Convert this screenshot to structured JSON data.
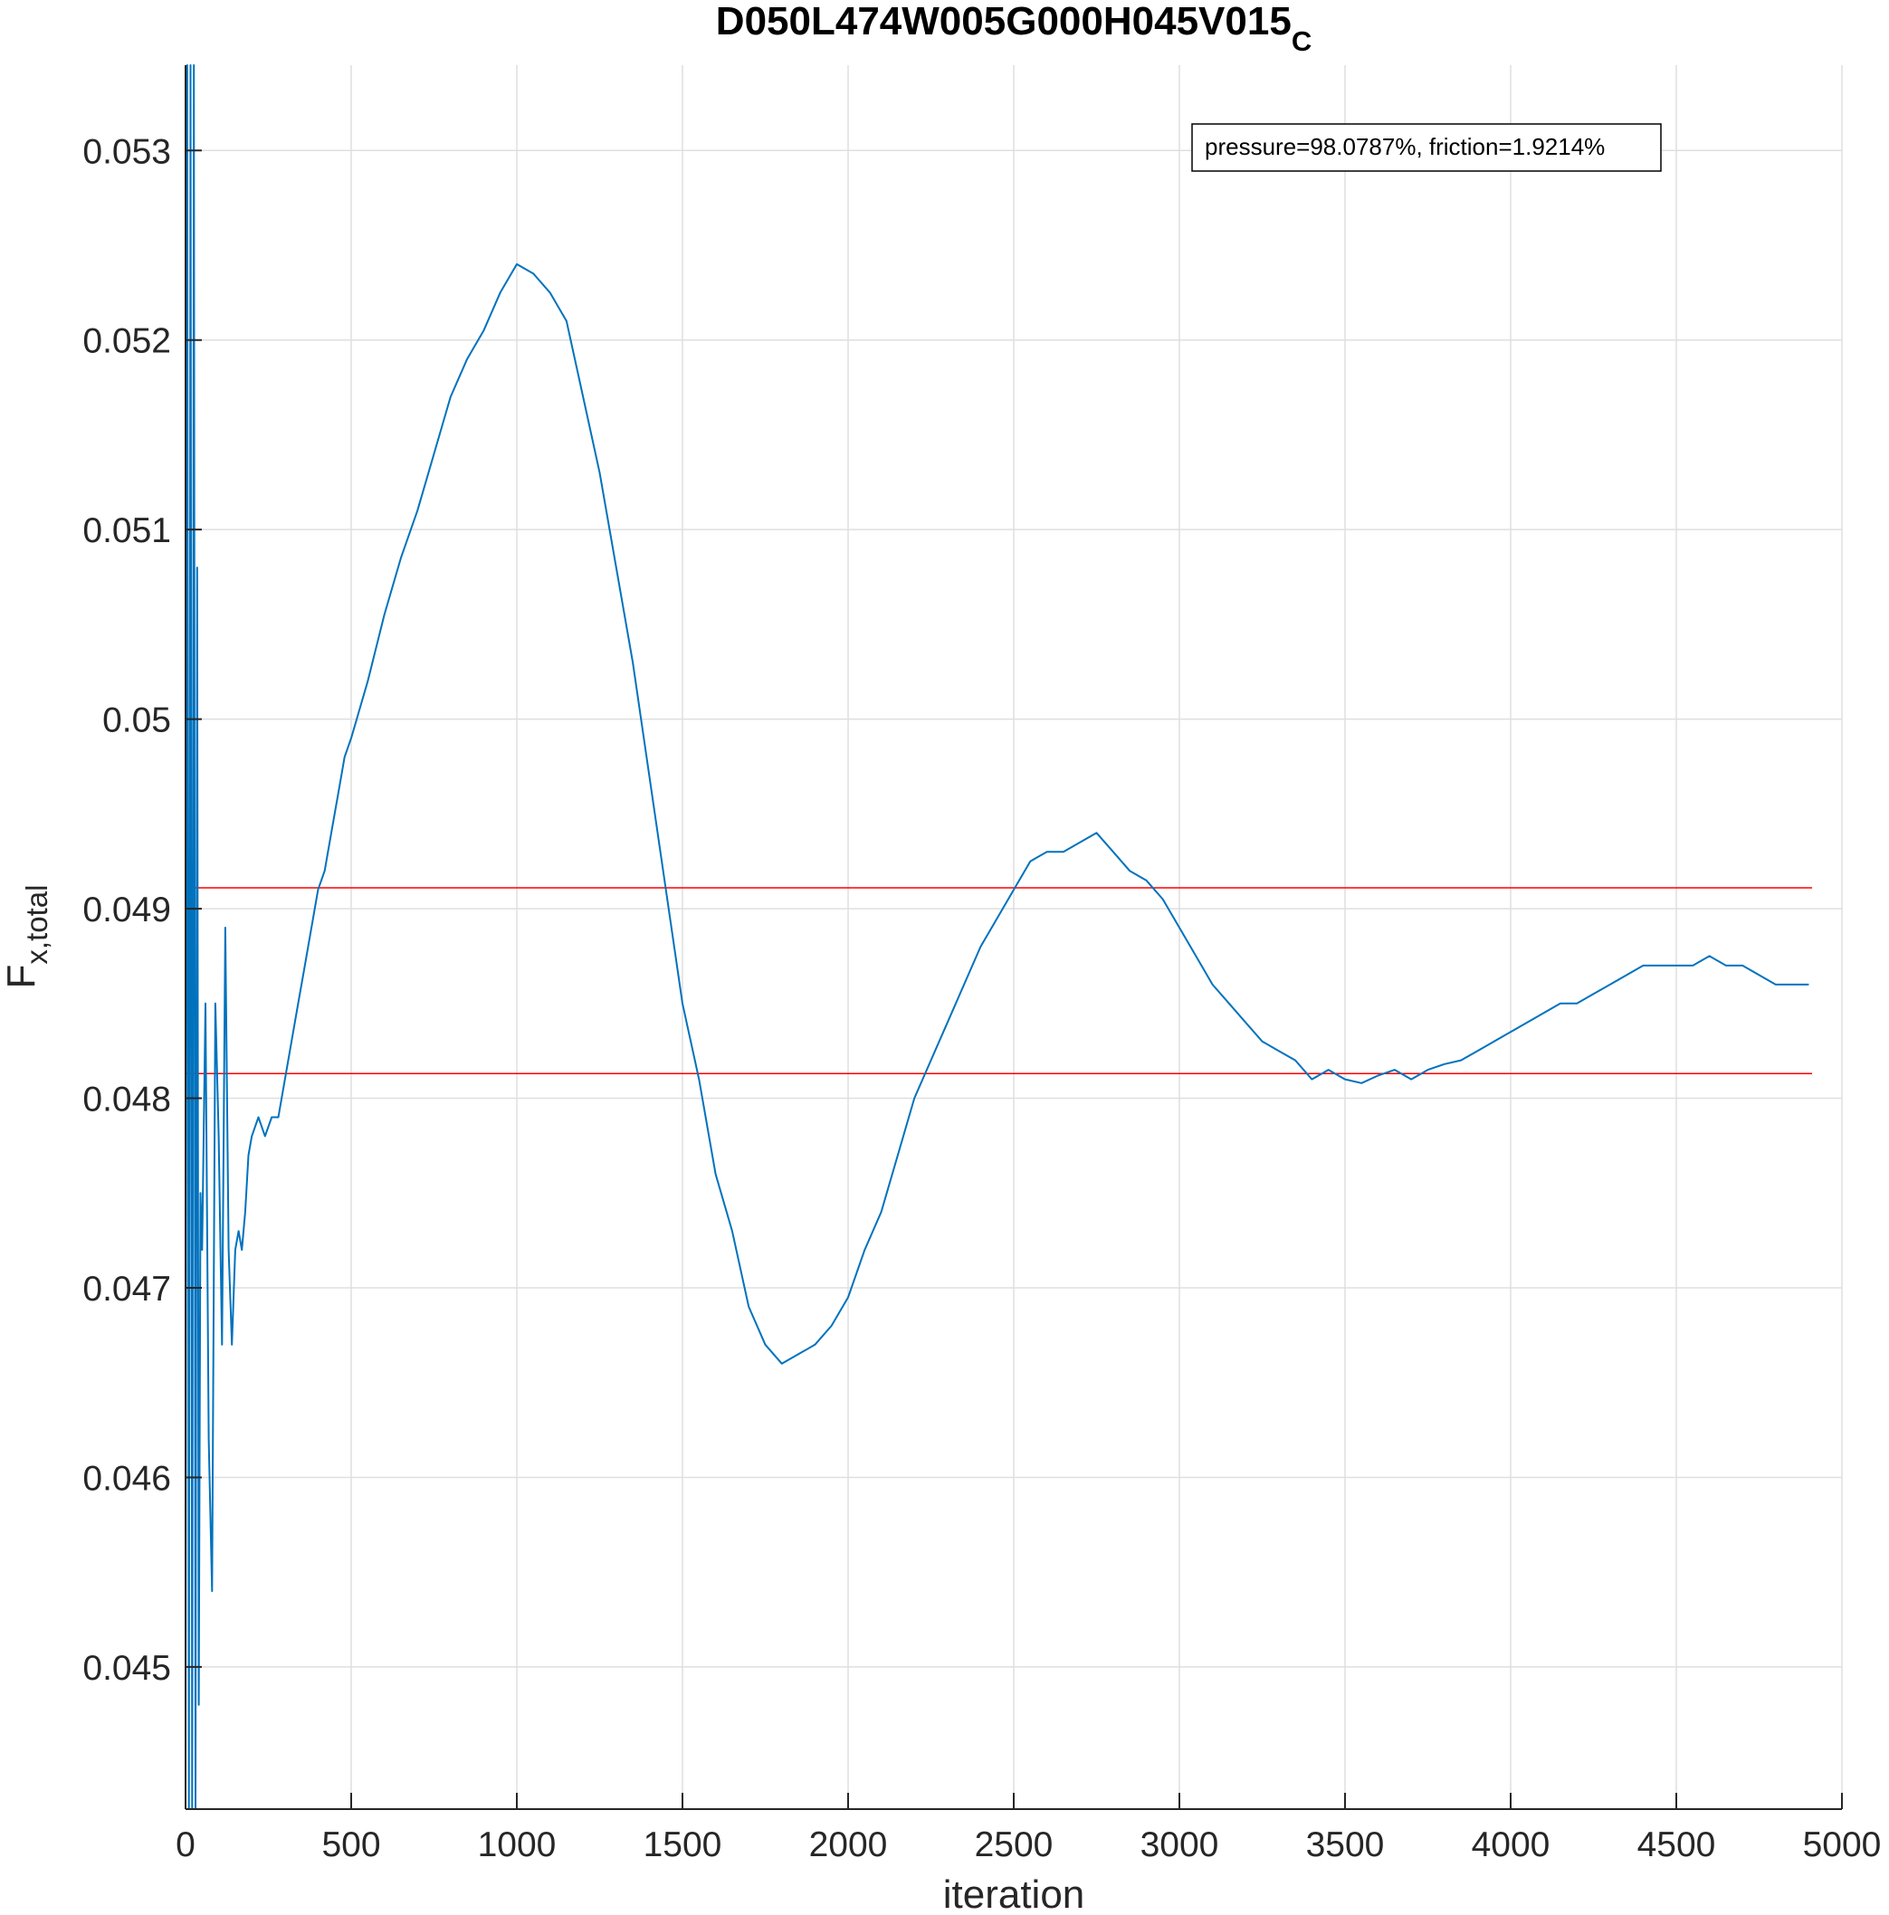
{
  "chart_data": {
    "type": "line",
    "title": "D050L474W005G000H045V015",
    "title_subscript": "C",
    "xlabel": "iteration",
    "ylabel": "F",
    "ylabel_subscript": "x,total",
    "xlim": [
      0,
      5000
    ],
    "ylim": [
      0.04425,
      0.05345
    ],
    "xticks": [
      0,
      500,
      1000,
      1500,
      2000,
      2500,
      3000,
      3500,
      4000,
      4500,
      5000
    ],
    "xtick_labels": [
      "0",
      "500",
      "1000",
      "1500",
      "2000",
      "2500",
      "3000",
      "3500",
      "4000",
      "4500",
      "5000"
    ],
    "yticks": [
      0.045,
      0.046,
      0.047,
      0.048,
      0.049,
      0.05,
      0.051,
      0.052,
      0.053
    ],
    "ytick_labels": [
      "0.045",
      "0.046",
      "0.047",
      "0.048",
      "0.049",
      "0.05",
      "0.051",
      "0.052",
      "0.053"
    ],
    "grid": true,
    "annotation": "pressure=98.0787%, friction=1.9214%",
    "series_color": "#0072BD",
    "reference_color": "#FF0000",
    "reference_lines": [
      {
        "y": 0.04911,
        "x_range": [
          0,
          4910
        ]
      },
      {
        "y": 0.04813,
        "x_range": [
          0,
          4910
        ]
      }
    ],
    "series": [
      {
        "x": [
          0,
          5,
          10,
          15,
          20,
          25,
          30,
          35,
          40,
          45,
          50,
          60,
          70,
          80,
          90,
          100,
          110,
          120,
          130,
          140,
          150,
          160,
          170,
          180,
          190,
          200,
          220,
          240,
          260,
          280,
          300,
          320,
          340,
          360,
          380,
          400,
          420,
          440,
          460,
          480,
          500,
          550,
          600,
          650,
          700,
          750,
          800,
          850,
          900,
          950,
          1000,
          1050,
          1100,
          1150,
          1200,
          1250,
          1300,
          1350,
          1400,
          1450,
          1500,
          1550,
          1600,
          1650,
          1700,
          1750,
          1800,
          1850,
          1900,
          1950,
          2000,
          2050,
          2100,
          2150,
          2200,
          2250,
          2300,
          2350,
          2400,
          2450,
          2500,
          2550,
          2600,
          2650,
          2700,
          2750,
          2800,
          2850,
          2900,
          2950,
          3000,
          3050,
          3100,
          3150,
          3200,
          3250,
          3300,
          3350,
          3400,
          3450,
          3500,
          3550,
          3600,
          3650,
          3700,
          3750,
          3800,
          3850,
          3900,
          3950,
          4000,
          4050,
          4100,
          4150,
          4200,
          4250,
          4300,
          4350,
          4400,
          4450,
          4500,
          4550,
          4600,
          4650,
          4700,
          4750,
          4800,
          4850,
          4900
        ],
        "y": [
          0.04425,
          0.05345,
          0.04425,
          0.05345,
          0.04425,
          0.05345,
          0.04425,
          0.0508,
          0.0448,
          0.0475,
          0.0472,
          0.0485,
          0.0462,
          0.0454,
          0.0485,
          0.0478,
          0.0467,
          0.0489,
          0.0472,
          0.0467,
          0.0472,
          0.0473,
          0.0472,
          0.0474,
          0.0477,
          0.0478,
          0.0479,
          0.0478,
          0.0479,
          0.0479,
          0.0481,
          0.0483,
          0.0485,
          0.0487,
          0.0489,
          0.0491,
          0.0492,
          0.0494,
          0.0496,
          0.0498,
          0.0499,
          0.0502,
          0.05055,
          0.05085,
          0.0511,
          0.0514,
          0.0517,
          0.0519,
          0.05205,
          0.05225,
          0.0524,
          0.05235,
          0.05225,
          0.0521,
          0.0517,
          0.0513,
          0.0508,
          0.0503,
          0.0497,
          0.0491,
          0.0485,
          0.0481,
          0.0476,
          0.0473,
          0.0469,
          0.0467,
          0.0466,
          0.04665,
          0.0467,
          0.0468,
          0.04695,
          0.0472,
          0.0474,
          0.0477,
          0.048,
          0.0482,
          0.0484,
          0.0486,
          0.0488,
          0.04895,
          0.0491,
          0.04925,
          0.0493,
          0.0493,
          0.04935,
          0.0494,
          0.0493,
          0.0492,
          0.04915,
          0.04905,
          0.0489,
          0.04875,
          0.0486,
          0.0485,
          0.0484,
          0.0483,
          0.04825,
          0.0482,
          0.0481,
          0.04815,
          0.0481,
          0.04808,
          0.04812,
          0.04815,
          0.0481,
          0.04815,
          0.04818,
          0.0482,
          0.04825,
          0.0483,
          0.04835,
          0.0484,
          0.04845,
          0.0485,
          0.0485,
          0.04855,
          0.0486,
          0.04865,
          0.0487,
          0.0487,
          0.0487,
          0.0487,
          0.04875,
          0.0487,
          0.0487,
          0.04865,
          0.0486,
          0.0486,
          0.0486
        ]
      }
    ]
  }
}
